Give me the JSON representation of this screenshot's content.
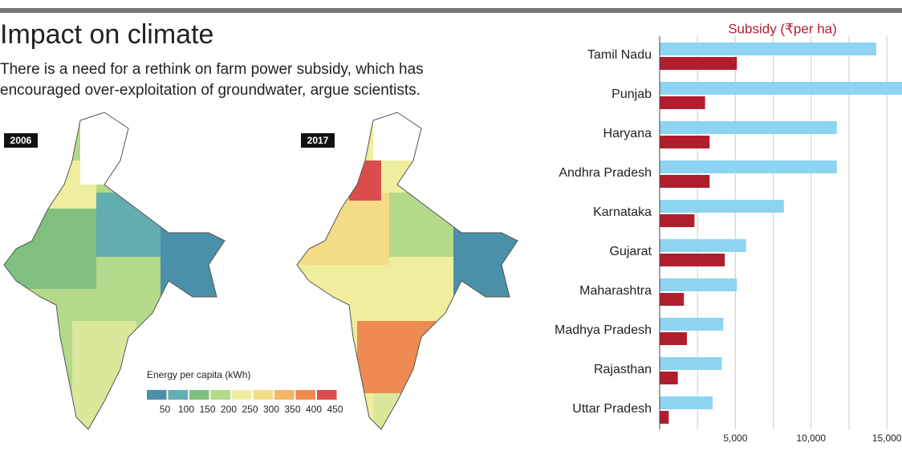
{
  "header": {
    "title": "Impact on climate",
    "subtitle_lines": [
      "There is a need for a rethink on farm power subsidy, which has",
      "encouraged over-exploitation of groundwater, argue scientists."
    ]
  },
  "maps": [
    {
      "label": "2006"
    },
    {
      "label": "2017"
    }
  ],
  "legend": {
    "title": "Energy per capita (kWh)",
    "colors": [
      "#4a90a8",
      "#63aeb0",
      "#7fc07f",
      "#b5d98a",
      "#eeee9e",
      "#f4dc86",
      "#f5b566",
      "#ee8a52",
      "#dc4c4c"
    ],
    "ticks": [
      50,
      100,
      150,
      200,
      250,
      300,
      350,
      400,
      450
    ]
  },
  "chart_data": {
    "type": "hbar",
    "title": "Subsidy (₹per ha)",
    "categories": [
      "Tamil Nadu",
      "Punjab",
      "Haryana",
      "Andhra Pradesh",
      "Karnataka",
      "Gujarat",
      "Maharashtra",
      "Madhya Pradesh",
      "Rajasthan",
      "Uttar Pradesh"
    ],
    "series": [
      {
        "color": "#8dd3f2",
        "values": [
          14300,
          16500,
          11700,
          11700,
          8200,
          5700,
          5100,
          4200,
          4100,
          3500
        ]
      },
      {
        "color": "#b01e2e",
        "values": [
          5100,
          3000,
          3300,
          3300,
          2300,
          4300,
          1600,
          1800,
          1200,
          600
        ]
      }
    ],
    "xlim": [
      0,
      16000
    ],
    "xticks": [
      {
        "value": 5000,
        "label": "5,000"
      },
      {
        "value": 10000,
        "label": "10,000"
      },
      {
        "value": 15000,
        "label": "15,000"
      }
    ],
    "xminor": [
      2500,
      7500,
      12500
    ],
    "grid": true
  }
}
